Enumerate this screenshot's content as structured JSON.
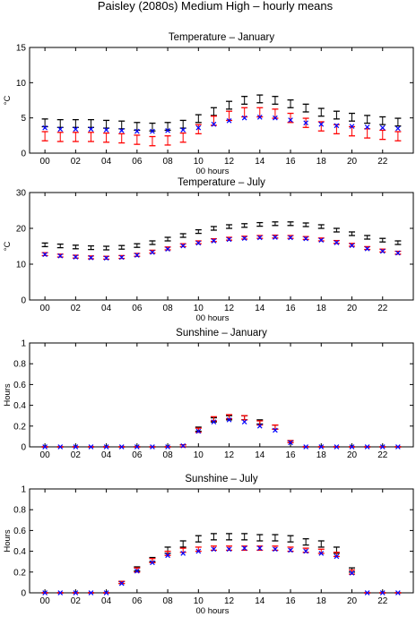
{
  "figure": {
    "title": "Paisley (2080s) Medium High – hourly means",
    "colors": {
      "black": "#000000",
      "red": "#ff0000",
      "blue": "#0000ff"
    }
  },
  "chart_data": [
    {
      "type": "scatter",
      "title": "Temperature – January",
      "xlabel": "00 hours",
      "ylabel": "°C",
      "ylim": [
        0,
        15
      ],
      "yticks": [
        0,
        5,
        10,
        15
      ],
      "ytick_labels": [
        "0",
        "5",
        "10",
        "15"
      ],
      "x": [
        0,
        1,
        2,
        3,
        4,
        5,
        6,
        7,
        8,
        9,
        10,
        11,
        12,
        13,
        14,
        15,
        16,
        17,
        18,
        19,
        20,
        21,
        22,
        23
      ],
      "xticks": [
        0,
        2,
        4,
        6,
        8,
        10,
        12,
        14,
        16,
        18,
        20,
        22
      ],
      "xtick_labels": [
        "00",
        "02",
        "04",
        "06",
        "08",
        "10",
        "12",
        "14",
        "16",
        "18",
        "20",
        "22"
      ],
      "series": [
        {
          "color": "#000000",
          "marker": "errorbar",
          "values": [
            4.3,
            4.2,
            4.2,
            4.2,
            4.1,
            4.0,
            3.8,
            3.7,
            3.8,
            4.1,
            4.9,
            5.9,
            6.8,
            7.5,
            7.7,
            7.5,
            7.0,
            6.4,
            5.8,
            5.4,
            5.1,
            4.8,
            4.6,
            4.4
          ],
          "err": [
            0.55,
            0.55,
            0.55,
            0.55,
            0.55,
            0.55,
            0.55,
            0.55,
            0.55,
            0.55,
            0.55,
            0.55,
            0.55,
            0.55,
            0.55,
            0.55,
            0.55,
            0.55,
            0.55,
            0.55,
            0.55,
            0.55,
            0.55,
            0.55
          ]
        },
        {
          "color": "#ff0000",
          "marker": "errorbar",
          "values": [
            2.4,
            2.3,
            2.3,
            2.3,
            2.2,
            2.1,
            1.9,
            1.7,
            1.8,
            2.2,
            3.4,
            4.6,
            5.3,
            5.8,
            5.8,
            5.6,
            5.0,
            4.3,
            3.8,
            3.4,
            3.1,
            2.8,
            2.6,
            2.4
          ],
          "err": [
            0.65,
            0.65,
            0.65,
            0.65,
            0.65,
            0.65,
            0.65,
            0.65,
            0.65,
            0.65,
            0.65,
            0.65,
            0.65,
            0.65,
            0.65,
            0.65,
            0.65,
            0.65,
            0.65,
            0.65,
            0.65,
            0.65,
            0.65,
            0.65
          ]
        },
        {
          "color": "#0000ff",
          "marker": "x",
          "values": [
            3.6,
            3.4,
            3.4,
            3.4,
            3.3,
            3.2,
            3.1,
            3.1,
            3.2,
            3.3,
            3.6,
            4.1,
            4.6,
            5.0,
            5.1,
            5.0,
            4.7,
            4.3,
            4.1,
            3.9,
            3.8,
            3.7,
            3.6,
            3.5
          ]
        }
      ]
    },
    {
      "type": "scatter",
      "title": "Temperature – July",
      "xlabel": "00 hours",
      "ylabel": "°C",
      "ylim": [
        0,
        30
      ],
      "yticks": [
        0,
        10,
        20,
        30
      ],
      "ytick_labels": [
        "0",
        "10",
        "20",
        "30"
      ],
      "x": [
        0,
        1,
        2,
        3,
        4,
        5,
        6,
        7,
        8,
        9,
        10,
        11,
        12,
        13,
        14,
        15,
        16,
        17,
        18,
        19,
        20,
        21,
        22,
        23
      ],
      "xticks": [
        0,
        2,
        4,
        6,
        8,
        10,
        12,
        14,
        16,
        18,
        20,
        22
      ],
      "xtick_labels": [
        "00",
        "02",
        "04",
        "06",
        "08",
        "10",
        "12",
        "14",
        "16",
        "18",
        "20",
        "22"
      ],
      "series": [
        {
          "color": "#000000",
          "marker": "errorbar",
          "values": [
            15.4,
            15.1,
            14.8,
            14.6,
            14.5,
            14.7,
            15.2,
            16.0,
            17.0,
            18.0,
            19.1,
            20.0,
            20.5,
            20.8,
            21.1,
            21.3,
            21.3,
            21.0,
            20.5,
            19.5,
            18.5,
            17.5,
            16.7,
            16.0
          ],
          "err": [
            0.5,
            0.5,
            0.5,
            0.5,
            0.5,
            0.5,
            0.5,
            0.5,
            0.5,
            0.5,
            0.5,
            0.5,
            0.5,
            0.5,
            0.5,
            0.5,
            0.5,
            0.5,
            0.5,
            0.5,
            0.5,
            0.5,
            0.5,
            0.5
          ]
        },
        {
          "color": "#ff0000",
          "marker": "errorbar",
          "values": [
            12.8,
            12.4,
            12.1,
            11.9,
            11.8,
            12.0,
            12.6,
            13.5,
            14.4,
            15.3,
            16.1,
            16.7,
            17.1,
            17.4,
            17.6,
            17.7,
            17.6,
            17.3,
            16.9,
            16.2,
            15.4,
            14.5,
            13.8,
            13.2
          ],
          "err": [
            0.4,
            0.4,
            0.4,
            0.4,
            0.4,
            0.4,
            0.4,
            0.4,
            0.4,
            0.4,
            0.4,
            0.4,
            0.4,
            0.4,
            0.4,
            0.4,
            0.4,
            0.4,
            0.4,
            0.4,
            0.4,
            0.4,
            0.4,
            0.4
          ]
        },
        {
          "color": "#0000ff",
          "marker": "x",
          "values": [
            12.7,
            12.3,
            12.0,
            11.8,
            11.7,
            11.9,
            12.5,
            13.3,
            14.2,
            15.1,
            15.9,
            16.5,
            16.9,
            17.2,
            17.4,
            17.5,
            17.4,
            17.1,
            16.7,
            16.0,
            15.2,
            14.3,
            13.6,
            13.1
          ]
        }
      ]
    },
    {
      "type": "scatter",
      "title": "Sunshine – January",
      "xlabel": "",
      "ylabel": "Hours",
      "ylim": [
        0,
        1
      ],
      "yticks": [
        0,
        0.2,
        0.4,
        0.6,
        0.8,
        1
      ],
      "ytick_labels": [
        "0",
        "0.2",
        "0.4",
        "0.6",
        "0.8",
        "1"
      ],
      "x": [
        0,
        1,
        2,
        3,
        4,
        5,
        6,
        7,
        8,
        9,
        10,
        11,
        12,
        13,
        14,
        15,
        16,
        17,
        18,
        19,
        20,
        21,
        22,
        23
      ],
      "xticks": [
        0,
        2,
        4,
        6,
        8,
        10,
        12,
        14,
        16,
        18,
        20,
        22
      ],
      "xtick_labels": [
        "00",
        "02",
        "04",
        "06",
        "08",
        "10",
        "12",
        "14",
        "16",
        "18",
        "20",
        "22"
      ],
      "series": [
        {
          "color": "#000000",
          "marker": "errorbar",
          "values": [
            0,
            0,
            0,
            0,
            0,
            0,
            0,
            0,
            0,
            0.01,
            0.17,
            0.26,
            0.28,
            0.28,
            0.24,
            0.19,
            0.05,
            0,
            0,
            0,
            0,
            0,
            0,
            0
          ],
          "err": [
            0,
            0,
            0,
            0,
            0,
            0,
            0,
            0,
            0,
            0.01,
            0.02,
            0.02,
            0.02,
            0.02,
            0.02,
            0.02,
            0.01,
            0,
            0,
            0,
            0,
            0,
            0,
            0
          ]
        },
        {
          "color": "#ff0000",
          "marker": "errorbar",
          "values": [
            0,
            0,
            0,
            0,
            0,
            0,
            0,
            0,
            0,
            0.01,
            0.16,
            0.27,
            0.29,
            0.28,
            0.23,
            0.19,
            0.05,
            0,
            0,
            0,
            0,
            0,
            0,
            0
          ],
          "err": [
            0,
            0,
            0,
            0,
            0,
            0,
            0,
            0,
            0,
            0.01,
            0.02,
            0.02,
            0.02,
            0.02,
            0.02,
            0.02,
            0.01,
            0,
            0,
            0,
            0,
            0,
            0,
            0
          ]
        },
        {
          "color": "#0000ff",
          "marker": "x",
          "values": [
            0,
            0,
            0,
            0,
            0,
            0,
            0,
            0,
            0,
            0.01,
            0.15,
            0.24,
            0.26,
            0.24,
            0.2,
            0.16,
            0.04,
            0,
            0,
            0,
            0,
            0,
            0,
            0
          ]
        }
      ]
    },
    {
      "type": "scatter",
      "title": "Sunshine – July",
      "xlabel": "00 hours",
      "ylabel": "Hours",
      "ylim": [
        0,
        1
      ],
      "yticks": [
        0,
        0.2,
        0.4,
        0.6,
        0.8,
        1
      ],
      "ytick_labels": [
        "0",
        "0.2",
        "0.4",
        "0.6",
        "0.8",
        "1"
      ],
      "x": [
        0,
        1,
        2,
        3,
        4,
        5,
        6,
        7,
        8,
        9,
        10,
        11,
        12,
        13,
        14,
        15,
        16,
        17,
        18,
        19,
        20,
        21,
        22,
        23
      ],
      "xticks": [
        0,
        2,
        4,
        6,
        8,
        10,
        12,
        14,
        16,
        18,
        20,
        22
      ],
      "xtick_labels": [
        "00",
        "02",
        "04",
        "06",
        "08",
        "10",
        "12",
        "14",
        "16",
        "18",
        "20",
        "22"
      ],
      "series": [
        {
          "color": "#000000",
          "marker": "errorbar",
          "values": [
            0,
            0,
            0,
            0,
            0,
            0.1,
            0.23,
            0.32,
            0.41,
            0.47,
            0.52,
            0.54,
            0.54,
            0.54,
            0.53,
            0.53,
            0.52,
            0.49,
            0.47,
            0.41,
            0.22,
            0,
            0,
            0
          ],
          "err": [
            0,
            0,
            0,
            0,
            0,
            0.01,
            0.02,
            0.02,
            0.03,
            0.03,
            0.03,
            0.03,
            0.03,
            0.03,
            0.03,
            0.03,
            0.03,
            0.03,
            0.03,
            0.03,
            0.02,
            0,
            0,
            0
          ]
        },
        {
          "color": "#ff0000",
          "marker": "errorbar",
          "values": [
            0,
            0,
            0,
            0,
            0,
            0.1,
            0.22,
            0.31,
            0.38,
            0.41,
            0.42,
            0.43,
            0.43,
            0.43,
            0.43,
            0.43,
            0.42,
            0.41,
            0.4,
            0.37,
            0.2,
            0,
            0,
            0
          ],
          "err": [
            0,
            0,
            0,
            0,
            0,
            0.01,
            0.02,
            0.02,
            0.02,
            0.02,
            0.02,
            0.02,
            0.02,
            0.02,
            0.02,
            0.02,
            0.02,
            0.02,
            0.02,
            0.02,
            0.02,
            0,
            0,
            0
          ]
        },
        {
          "color": "#0000ff",
          "marker": "x",
          "values": [
            0,
            0,
            0,
            0,
            0,
            0.09,
            0.21,
            0.29,
            0.36,
            0.38,
            0.4,
            0.42,
            0.42,
            0.43,
            0.43,
            0.42,
            0.41,
            0.4,
            0.38,
            0.35,
            0.19,
            0,
            0,
            0
          ]
        }
      ]
    }
  ]
}
